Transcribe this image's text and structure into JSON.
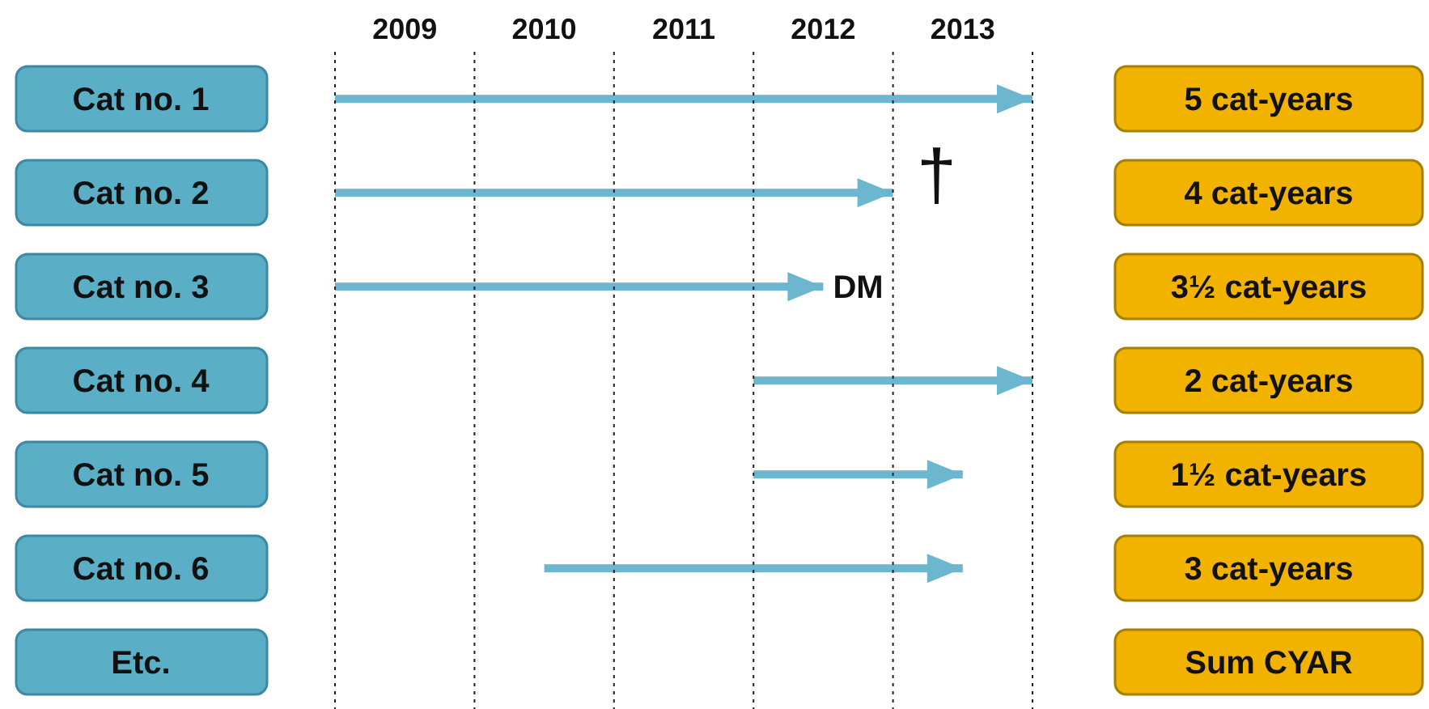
{
  "chart_data": {
    "type": "bar",
    "orientation": "horizontal",
    "categories": [
      "Cat no. 1",
      "Cat no. 2",
      "Cat no. 3",
      "Cat no. 4",
      "Cat no. 5",
      "Cat no. 6",
      "Etc."
    ],
    "values": [
      5,
      4,
      3.5,
      2,
      1.5,
      3,
      null
    ],
    "base": [
      2009,
      2009,
      2009,
      2012,
      2012,
      2010.5,
      null
    ],
    "color": "#6cb6cf",
    "xlim": [
      2009,
      2014
    ],
    "xticks": [
      {
        "value": 2009.5,
        "label": "2009"
      },
      {
        "value": 2010.5,
        "label": "2010"
      },
      {
        "value": 2011.5,
        "label": "2011"
      },
      {
        "value": 2012.5,
        "label": "2012"
      },
      {
        "value": 2013.5,
        "label": "2013"
      }
    ],
    "ref_lines": [
      {
        "axis": "x",
        "value": 2009,
        "line_style": "dotted"
      },
      {
        "axis": "x",
        "value": 2010,
        "line_style": "dotted"
      },
      {
        "axis": "x",
        "value": 2011,
        "line_style": "dotted"
      },
      {
        "axis": "x",
        "value": 2012,
        "line_style": "dotted"
      },
      {
        "axis": "x",
        "value": 2013,
        "line_style": "dotted"
      },
      {
        "axis": "x",
        "value": 2014,
        "line_style": "dotted"
      }
    ],
    "annotations": [
      {
        "text": "†",
        "x": 2013,
        "y": "Cat no. 2"
      },
      {
        "text": "DM",
        "x": 2012.5,
        "y": "Cat no. 3"
      },
      "5 cat-years",
      "4 cat-years",
      "3½ cat-years",
      "2 cat-years",
      "1½ cat-years",
      "3 cat-years",
      "Sum CYAR"
    ]
  }
}
